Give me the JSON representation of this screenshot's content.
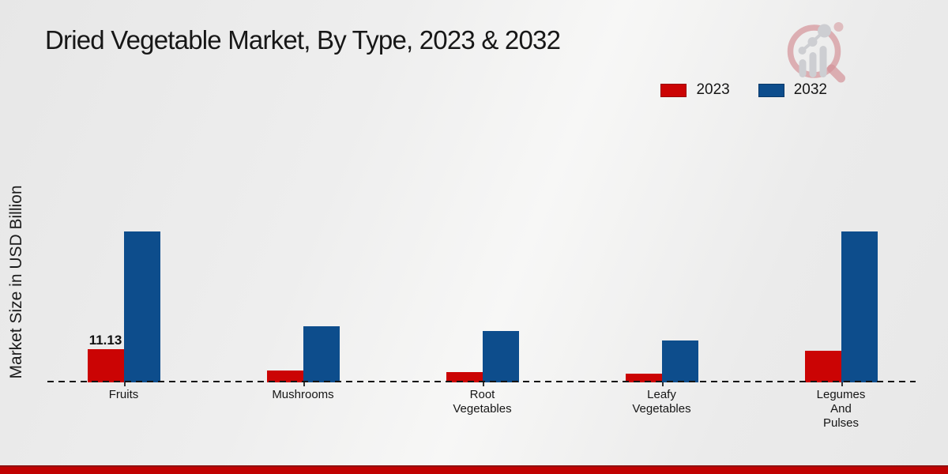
{
  "header": {
    "title": "Dried Vegetable Market, By Type, 2023 & 2032"
  },
  "y_axis": {
    "label": "Market Size in USD Billion"
  },
  "legend": {
    "items": [
      {
        "label": "2023",
        "color": "#cb0404"
      },
      {
        "label": "2032",
        "color": "#0d4d8c"
      }
    ]
  },
  "footer": {
    "accent_color": "#c00202"
  },
  "logo": {
    "name": "market-research-magnifier-logo"
  },
  "chart_data": {
    "type": "bar",
    "title": "Dried Vegetable Market, By Type, 2023 & 2032",
    "xlabel": "",
    "ylabel": "Market Size in USD Billion",
    "unit": "USD Billion",
    "gridlines": false,
    "legend_position": "top-right",
    "baseline_style": "dashed",
    "categories": [
      [
        "Fruits"
      ],
      [
        "Mushrooms"
      ],
      [
        "Root",
        "Vegetables"
      ],
      [
        "Leafy",
        "Vegetables"
      ],
      [
        "Legumes",
        "And",
        "Pulses"
      ]
    ],
    "series": [
      {
        "name": "2023",
        "color": "#cb0404",
        "values": [
          11.13,
          3.9,
          3.4,
          2.9,
          10.6
        ],
        "bar_labels": [
          "11.13",
          "",
          "",
          "",
          ""
        ]
      },
      {
        "name": "2032",
        "color": "#0d4d8c",
        "values": [
          50.6,
          18.7,
          17.1,
          14.0,
          50.7
        ],
        "bar_labels": [
          "",
          "",
          "",
          "",
          ""
        ]
      }
    ]
  }
}
